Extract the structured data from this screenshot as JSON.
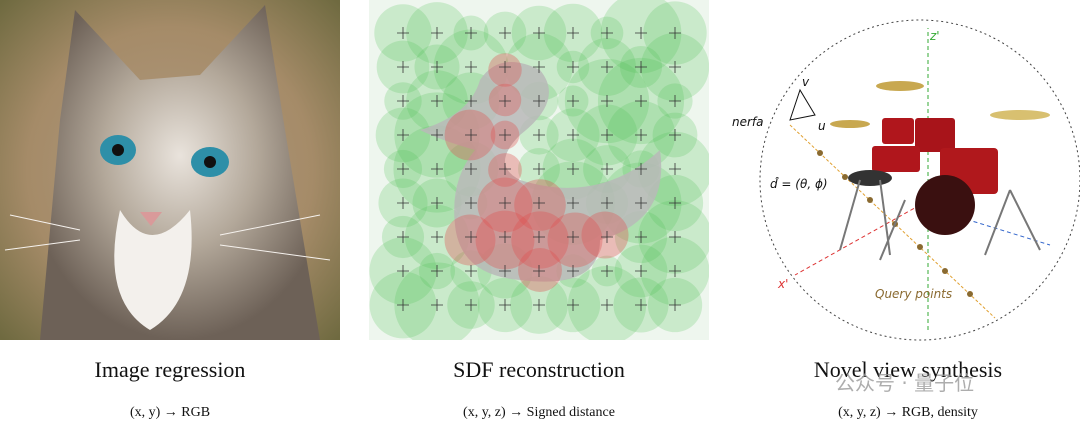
{
  "panels": [
    {
      "title": "Image regression",
      "mapping": "(x, y) → RGB"
    },
    {
      "title": "SDF reconstruction",
      "mapping": "(x, y, z) →  Signed distance"
    },
    {
      "title": "Novel view synthesis",
      "mapping": "(x, y, z) →  RGB, density",
      "labels": {
        "z_axis": "z'",
        "x_axis": "x'",
        "camera": "nerfa",
        "u": "u",
        "v": "v",
        "direction": "d̂ = (θ, ϕ)",
        "query": "Query points"
      }
    }
  ],
  "watermark": "公众号 · 量子位"
}
